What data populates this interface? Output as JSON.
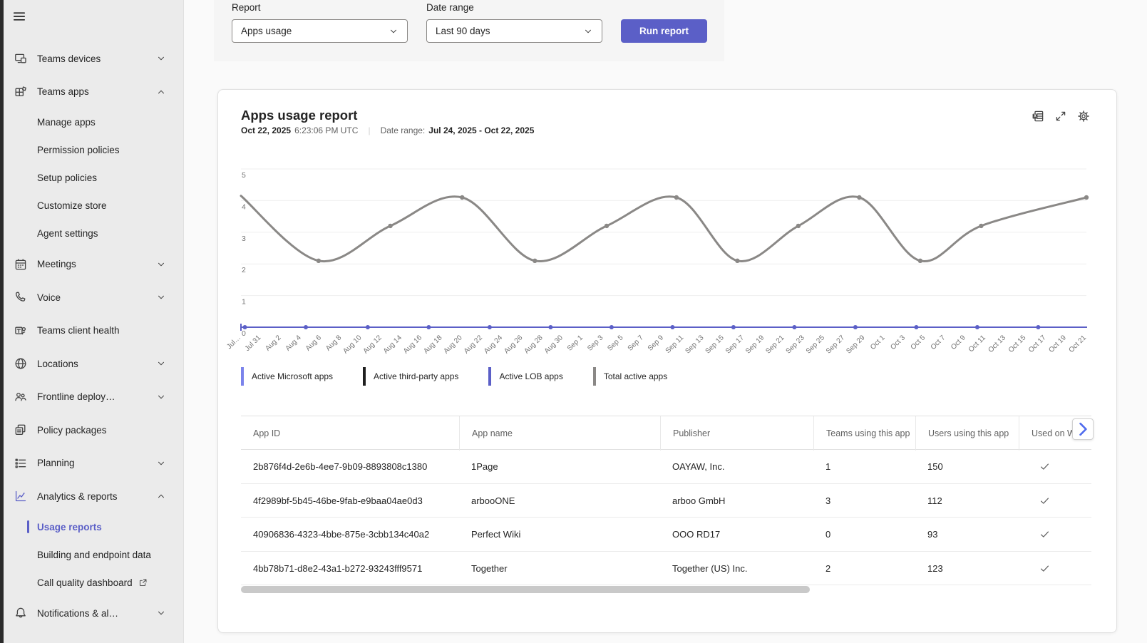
{
  "colors": {
    "accent": "#5b5fc7",
    "light_purple": "#7b83eb",
    "black_series": "#1f1f1f",
    "gray_series": "#8a8886",
    "sidebar_bg": "#ebebeb",
    "page_bg": "#fafafa"
  },
  "sidebar": {
    "items": [
      {
        "label": "Teams devices",
        "icon": "devices-icon",
        "level": 0,
        "chevron": "down"
      },
      {
        "label": "Teams apps",
        "icon": "apps-icon",
        "level": 0,
        "chevron": "up"
      },
      {
        "label": "Manage apps",
        "level": 1
      },
      {
        "label": "Permission policies",
        "level": 1
      },
      {
        "label": "Setup policies",
        "level": 1
      },
      {
        "label": "Customize store",
        "level": 1
      },
      {
        "label": "Agent settings",
        "level": 1
      },
      {
        "label": "Meetings",
        "icon": "calendar-icon",
        "level": 0,
        "chevron": "down"
      },
      {
        "label": "Voice",
        "icon": "phone-icon",
        "level": 0,
        "chevron": "down"
      },
      {
        "label": "Teams client health",
        "icon": "client-health-icon",
        "level": 0
      },
      {
        "label": "Locations",
        "icon": "globe-icon",
        "level": 0,
        "chevron": "down"
      },
      {
        "label": "Frontline deploy…",
        "icon": "people-icon",
        "level": 0,
        "chevron": "down"
      },
      {
        "label": "Policy packages",
        "icon": "policy-packages-icon",
        "level": 0
      },
      {
        "label": "Planning",
        "icon": "planning-icon",
        "level": 0,
        "chevron": "down"
      },
      {
        "label": "Analytics & reports",
        "icon": "analytics-icon",
        "level": 0,
        "chevron": "up",
        "accent": true
      },
      {
        "label": "Usage reports",
        "level": 1,
        "selected": true
      },
      {
        "label": "Building and endpoint data",
        "level": 1
      },
      {
        "label": "Call quality dashboard",
        "level": 1,
        "external": true
      },
      {
        "label": "Notifications & al…",
        "icon": "bell-icon",
        "level": 0,
        "chevron": "down"
      }
    ]
  },
  "filters": {
    "report_label": "Report",
    "report_value": "Apps usage",
    "date_range_label": "Date range",
    "date_range_value": "Last 90 days",
    "run_button_label": "Run report"
  },
  "report_header": {
    "title": "Apps usage report",
    "generated_date": "Oct 22, 2025",
    "generated_time": "6:23:06 PM UTC",
    "pipe": "|",
    "date_range_label": "Date range:",
    "date_range_value": "Jul 24, 2025 - Oct 22, 2025",
    "actions": [
      "excel-export-icon",
      "expand-icon",
      "gear-icon"
    ]
  },
  "chart_data": {
    "type": "line",
    "title": "Apps usage report",
    "grid": "horizontal",
    "legend_position": "bottom",
    "ylim": [
      0,
      5
    ],
    "y_ticks": [
      0,
      1,
      2,
      3,
      4,
      5
    ],
    "x_days_span": 86,
    "x_tick_labels": [
      "Jul…",
      "Jul 31",
      "Aug 2",
      "Aug 4",
      "Aug 6",
      "Aug 8",
      "Aug 10",
      "Aug 12",
      "Aug 14",
      "Aug 16",
      "Aug 18",
      "Aug 20",
      "Aug 22",
      "Aug 24",
      "Aug 26",
      "Aug 28",
      "Aug 30",
      "Sep 1",
      "Sep 3",
      "Sep 5",
      "Sep 7",
      "Sep 9",
      "Sep 11",
      "Sep 13",
      "Sep 15",
      "Sep 17",
      "Sep 19",
      "Sep 21",
      "Sep 23",
      "Sep 25",
      "Sep 27",
      "Sep 29",
      "Oct 1",
      "Oct 3",
      "Oct 5",
      "Oct 7",
      "Oct 9",
      "Oct 11",
      "Oct 13",
      "Oct 15",
      "Oct 17",
      "Oct 19",
      "Oct 21"
    ],
    "series": [
      {
        "name": "Active Microsoft apps",
        "color": "#7b83eb",
        "width": 2,
        "points_day_value": [
          [
            0,
            0
          ],
          [
            86,
            0
          ]
        ]
      },
      {
        "name": "Active third-party apps",
        "color": "#1f1f1f",
        "width": 2,
        "points_day_value": [
          [
            0,
            0
          ],
          [
            86,
            0
          ]
        ]
      },
      {
        "name": "Active LOB apps",
        "color": "#5b5fc7",
        "width": 2,
        "points_day_value": [
          [
            0,
            0
          ],
          [
            86,
            0
          ]
        ],
        "marker_days": [
          0.4,
          6.6,
          12.9,
          19.1,
          25.3,
          31.5,
          37.7,
          43.9,
          50.1,
          56.3,
          62.5,
          68.7,
          74.9,
          81.1
        ]
      },
      {
        "name": "Total active apps",
        "color": "#8a8886",
        "width": 3,
        "smooth": true,
        "markers": "all_but_first",
        "points_day_value": [
          [
            0,
            4.15
          ],
          [
            7.9,
            2.1
          ],
          [
            15.2,
            3.2
          ],
          [
            22.5,
            4.1
          ],
          [
            29.9,
            2.1
          ],
          [
            37.2,
            3.2
          ],
          [
            44.3,
            4.1
          ],
          [
            50.5,
            2.1
          ],
          [
            56.7,
            3.2
          ],
          [
            62.9,
            4.1
          ],
          [
            69.1,
            2.1
          ],
          [
            75.3,
            3.2
          ],
          [
            86,
            4.1
          ]
        ]
      }
    ]
  },
  "table": {
    "columns": [
      "App ID",
      "App name",
      "Publisher",
      "Teams using this app",
      "Users using this app",
      "Used on W"
    ],
    "rows": [
      {
        "cells": [
          "2b876f4d-2e6b-4ee7-9b09-8893808c1380",
          "1Page",
          "OAYAW, Inc.",
          "1",
          "150"
        ],
        "used_on_windows": true
      },
      {
        "cells": [
          "4f2989bf-5b45-46be-9fab-e9baa04ae0d3",
          "arbooONE",
          "arboo GmbH",
          "3",
          "112"
        ],
        "used_on_windows": true
      },
      {
        "cells": [
          "40906836-4323-4bbe-875e-3cbb134c40a2",
          "Perfect Wiki",
          "OOO RD17",
          "0",
          "93"
        ],
        "used_on_windows": true
      },
      {
        "cells": [
          "4bb78b71-d8e2-43a1-b272-93243fff9571",
          "Together",
          "Together (US) Inc.",
          "2",
          "123"
        ],
        "used_on_windows": true
      }
    ]
  }
}
